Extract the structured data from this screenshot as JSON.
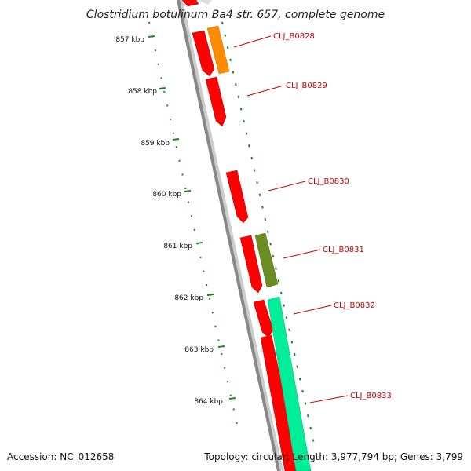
{
  "title": "Clostridium botulinum Ba4 str. 657, complete genome",
  "accession": "Accession: NC_012658",
  "topology": "Topology: circular; Length: 3,977,794 bp; Genes: 3,799",
  "ticks": [
    {
      "label": "857 kbp"
    },
    {
      "label": "858 kbp"
    },
    {
      "label": "859 kbp"
    },
    {
      "label": "860 kbp"
    },
    {
      "label": "861 kbp"
    },
    {
      "label": "862 kbp"
    },
    {
      "label": "863 kbp"
    },
    {
      "label": "864 kbp"
    }
  ],
  "genes": [
    {
      "label": "CLJ_B0828"
    },
    {
      "label": "CLJ_B0829"
    },
    {
      "label": "CLJ_B0830"
    },
    {
      "label": "CLJ_B0831"
    },
    {
      "label": "CLJ_B0832"
    },
    {
      "label": "CLJ_B0833"
    }
  ],
  "colors": {
    "cds": "#ff0000",
    "rrna": "#ff8c00",
    "trna": "#6b8e23",
    "misc": "#00ee99",
    "backbone": "#888888",
    "ticks": "#1a8a1a",
    "labels": "#cc0000"
  }
}
